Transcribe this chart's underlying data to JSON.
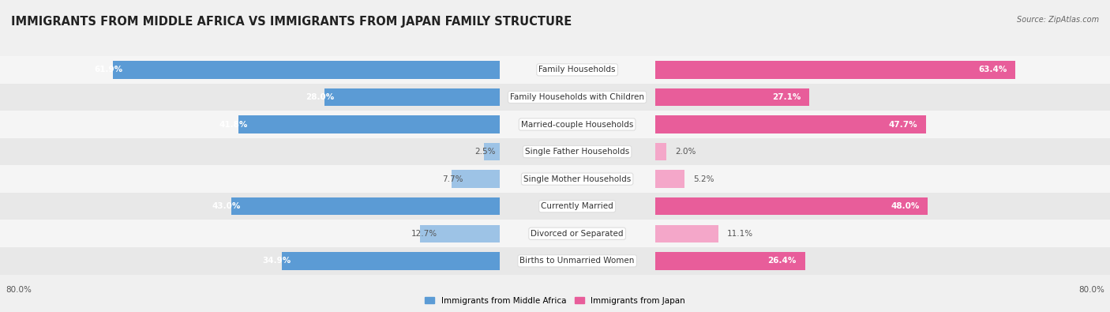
{
  "title": "IMMIGRANTS FROM MIDDLE AFRICA VS IMMIGRANTS FROM JAPAN FAMILY STRUCTURE",
  "source": "Source: ZipAtlas.com",
  "categories": [
    "Family Households",
    "Family Households with Children",
    "Married-couple Households",
    "Single Father Households",
    "Single Mother Households",
    "Currently Married",
    "Divorced or Separated",
    "Births to Unmarried Women"
  ],
  "left_values": [
    61.9,
    28.0,
    41.8,
    2.5,
    7.7,
    43.0,
    12.7,
    34.9
  ],
  "right_values": [
    63.4,
    27.1,
    47.7,
    2.0,
    5.2,
    48.0,
    11.1,
    26.4
  ],
  "max_val": 80.0,
  "left_color_strong": "#5b9bd5",
  "left_color_weak": "#9dc3e6",
  "right_color_strong": "#e85d9a",
  "right_color_weak": "#f4a7c9",
  "strong_threshold": 20.0,
  "left_label": "Immigrants from Middle Africa",
  "right_label": "Immigrants from Japan",
  "bg_color": "#f0f0f0",
  "row_color_light": "#f5f5f5",
  "row_color_dark": "#e8e8e8",
  "title_fontsize": 10.5,
  "label_fontsize": 7.5,
  "value_fontsize": 7.5,
  "source_fontsize": 7
}
